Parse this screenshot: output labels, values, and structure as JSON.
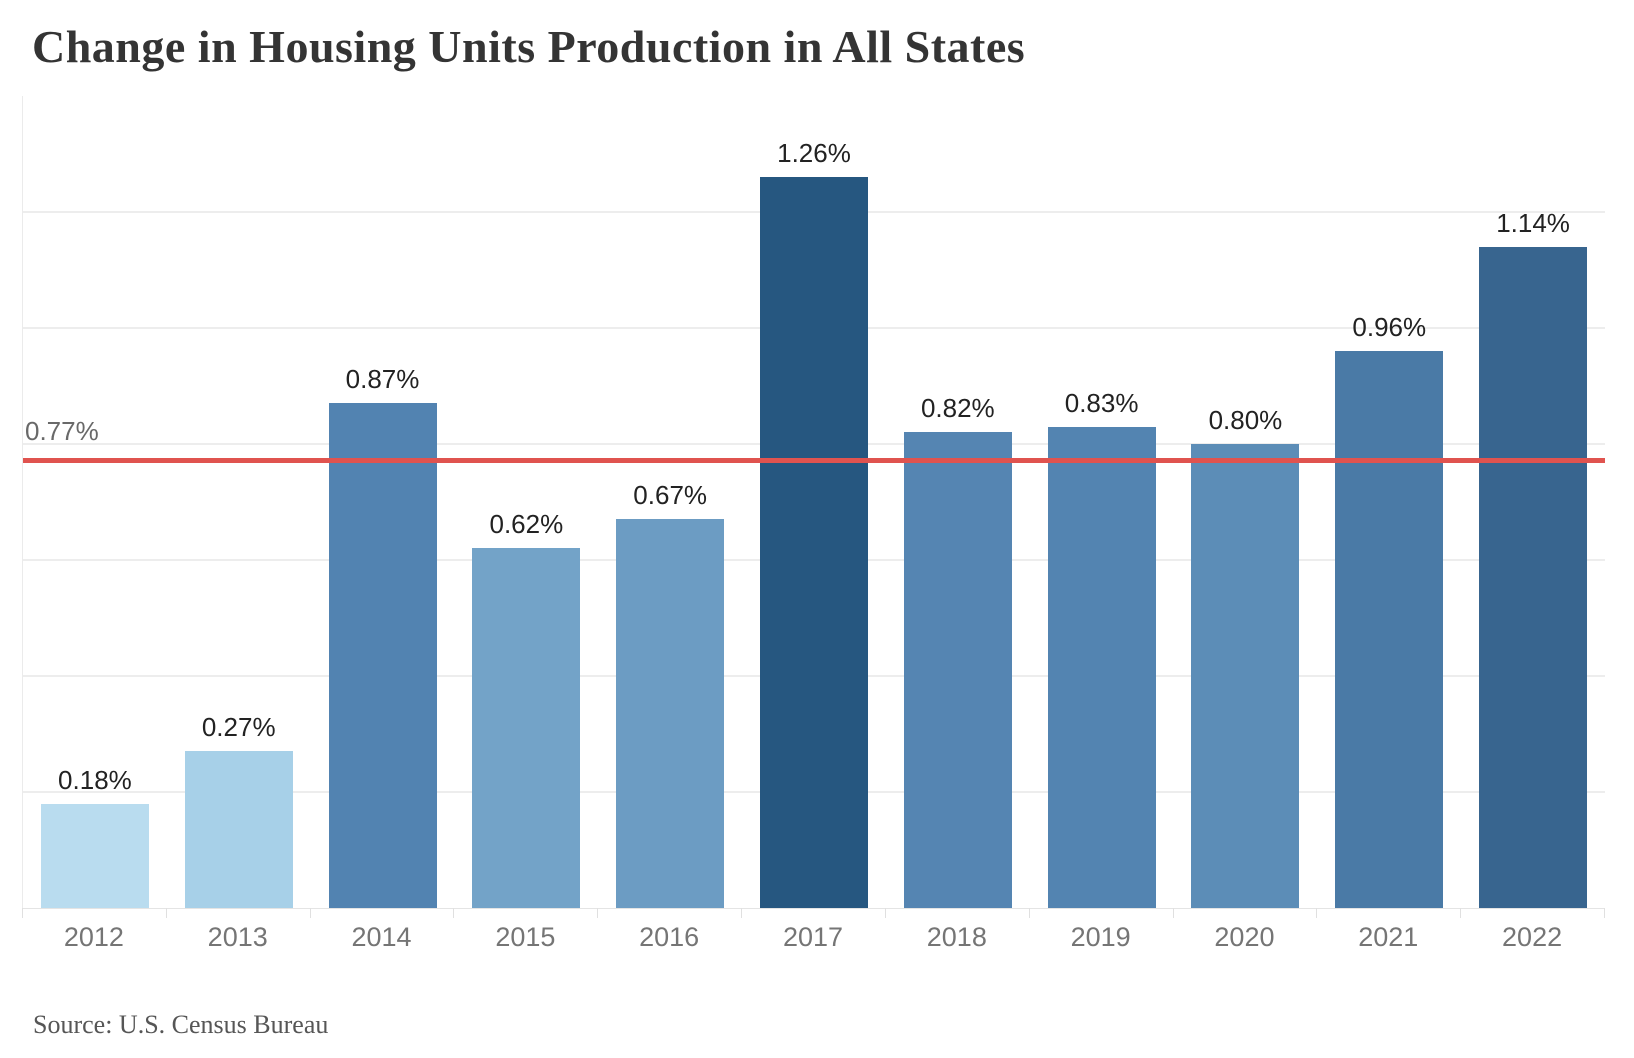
{
  "page": {
    "title": "Change in Housing Units Production in All States",
    "source": "Source: U.S. Census Bureau"
  },
  "colors": {
    "reference_line": "#e0534f",
    "grid_line": "#ededed",
    "axis_line": "#e4e4e4",
    "title_text": "#343434",
    "value_label_text": "#222222",
    "axis_label_text": "#757575",
    "reference_label_text": "#696969",
    "source_text": "#565656"
  },
  "chart_data": {
    "type": "bar",
    "title": "Change in Housing Units Production in All States",
    "categories": [
      "2012",
      "2013",
      "2014",
      "2015",
      "2016",
      "2017",
      "2018",
      "2019",
      "2020",
      "2021",
      "2022"
    ],
    "values": [
      0.18,
      0.27,
      0.87,
      0.62,
      0.67,
      1.26,
      0.82,
      0.83,
      0.8,
      0.96,
      1.14
    ],
    "value_labels": [
      "0.18%",
      "0.27%",
      "0.87%",
      "0.62%",
      "0.67%",
      "1.26%",
      "0.82%",
      "0.83%",
      "0.80%",
      "0.96%",
      "1.14%"
    ],
    "bar_colors": [
      "#b9dcef",
      "#a7d0e8",
      "#5283b1",
      "#73a3c8",
      "#6c9cc3",
      "#265780",
      "#5585b2",
      "#5384b1",
      "#5c8db7",
      "#4a7aa6",
      "#38658f"
    ],
    "xlabel": "",
    "ylabel": "",
    "ylim": [
      0,
      1.4
    ],
    "grid": true,
    "grid_step": 0.2,
    "legend": false,
    "reference_line": {
      "value": 0.77,
      "label": "0.77%"
    },
    "source": "Source: U.S. Census Bureau"
  }
}
